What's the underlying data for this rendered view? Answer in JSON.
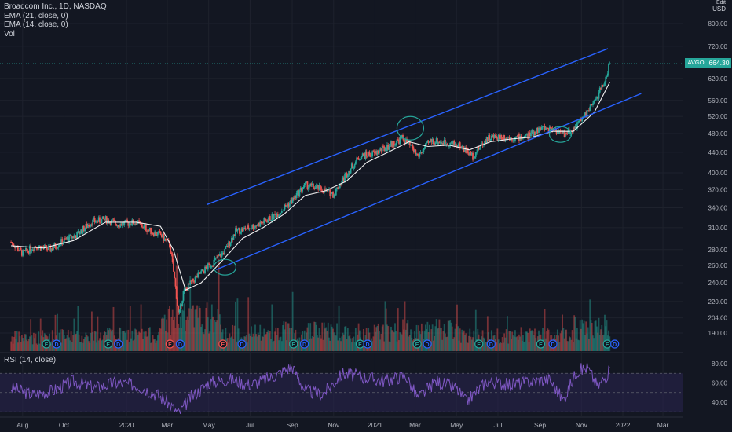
{
  "header": {
    "symbol_line": "Broadcom Inc., 1D, NASDAQ",
    "ema1": "EMA (21, close, 0)",
    "ema2": "EMA (14, close, 0)",
    "vol": "Vol"
  },
  "rsi_pane": {
    "title": "RSI (14, close)"
  },
  "price_axis": {
    "unit_top": "Edit",
    "unit": "USD"
  },
  "last_price": {
    "ticker": "AVGO",
    "value": "664.30"
  },
  "colors": {
    "background": "#131722",
    "up": "#26a69a",
    "down": "#ef5350",
    "ema_line": "#f0f0f0",
    "channel": "#2962ff",
    "circle": "#26a69a",
    "rsi_line": "#7e57c2",
    "rsi_band": "#2a2450",
    "earnings_up": "#26a69a",
    "earnings_down": "#ef5350"
  },
  "chart_data": [
    {
      "type": "candlestick",
      "title": "Broadcom Inc., 1D, NASDAQ",
      "y_scale": "log",
      "y_ticks": [
        190,
        204,
        220,
        240,
        260,
        280,
        310,
        340,
        370,
        400,
        440,
        480,
        520,
        560,
        620,
        720,
        800
      ],
      "y_tick_labels": [
        "190.00",
        "204.00",
        "220.00",
        "240.00",
        "260.00",
        "280.00",
        "310.00",
        "340.00",
        "370.00",
        "400.00",
        "440.00",
        "480.00",
        "520.00",
        "560.00",
        "620.00",
        "720.00",
        "800.00"
      ],
      "x_tick_labels": [
        "Aug",
        "Oct",
        "2020",
        "Mar",
        "May",
        "Jul",
        "Sep",
        "Nov",
        "2021",
        "Mar",
        "May",
        "Jul",
        "Sep",
        "Nov",
        "2022",
        "Mar"
      ],
      "x_ticks": [
        "2019-08",
        "2019-10",
        "2020-01",
        "2020-03",
        "2020-05",
        "2020-07",
        "2020-09",
        "2020-11",
        "2021-01",
        "2021-03",
        "2021-05",
        "2021-07",
        "2021-09",
        "2021-11",
        "2022-01",
        "2022-03"
      ],
      "series": [
        {
          "name": "Close",
          "x": [
            "2019-07-15",
            "2019-08-01",
            "2019-08-20",
            "2019-09-10",
            "2019-10-01",
            "2019-10-20",
            "2019-11-10",
            "2019-12-01",
            "2019-12-20",
            "2020-01-15",
            "2020-02-05",
            "2020-02-20",
            "2020-03-05",
            "2020-03-18",
            "2020-03-25",
            "2020-04-15",
            "2020-05-05",
            "2020-05-25",
            "2020-06-10",
            "2020-07-01",
            "2020-07-20",
            "2020-08-10",
            "2020-09-01",
            "2020-09-20",
            "2020-10-10",
            "2020-11-01",
            "2020-11-20",
            "2020-12-10",
            "2021-01-01",
            "2021-01-20",
            "2021-02-10",
            "2021-02-25",
            "2021-03-05",
            "2021-03-25",
            "2021-04-15",
            "2021-05-05",
            "2021-05-25",
            "2021-06-15",
            "2021-07-05",
            "2021-07-25",
            "2021-08-15",
            "2021-09-01",
            "2021-09-20",
            "2021-10-05",
            "2021-10-20",
            "2021-11-05",
            "2021-11-20",
            "2021-12-05",
            "2021-12-13"
          ],
          "values": [
            290,
            275,
            285,
            280,
            292,
            300,
            318,
            322,
            315,
            318,
            305,
            300,
            285,
            205,
            230,
            248,
            262,
            278,
            305,
            310,
            318,
            330,
            352,
            378,
            372,
            362,
            398,
            432,
            438,
            452,
            470,
            448,
            432,
            465,
            460,
            455,
            432,
            470,
            474,
            470,
            475,
            492,
            492,
            478,
            490,
            520,
            555,
            610,
            664
          ]
        },
        {
          "name": "EMA (21, close, 0)",
          "x": [
            "2019-07-15",
            "2019-09-01",
            "2019-10-15",
            "2019-12-01",
            "2020-01-15",
            "2020-02-20",
            "2020-03-10",
            "2020-03-28",
            "2020-04-20",
            "2020-05-20",
            "2020-06-20",
            "2020-07-20",
            "2020-08-20",
            "2020-09-20",
            "2020-10-20",
            "2020-11-20",
            "2020-12-20",
            "2021-01-20",
            "2021-02-20",
            "2021-03-20",
            "2021-04-20",
            "2021-05-20",
            "2021-06-20",
            "2021-07-20",
            "2021-08-20",
            "2021-09-20",
            "2021-10-20",
            "2021-11-20",
            "2021-12-13"
          ],
          "values": [
            285,
            282,
            292,
            318,
            318,
            312,
            280,
            232,
            240,
            265,
            295,
            310,
            330,
            360,
            368,
            385,
            420,
            440,
            462,
            452,
            455,
            445,
            462,
            468,
            472,
            485,
            485,
            530,
            610
          ]
        },
        {
          "name": "Vol",
          "x": [
            "2019-07",
            "2019-10",
            "2020-01",
            "2020-03",
            "2020-06",
            "2020-09",
            "2020-12",
            "2021-03",
            "2021-06",
            "2021-09",
            "2021-12"
          ],
          "values": [
            1.0,
            1.1,
            1.2,
            2.4,
            1.3,
            1.5,
            1.4,
            1.6,
            1.1,
            1.2,
            1.8
          ]
        }
      ],
      "channel_lines": [
        {
          "name": "upper",
          "x": [
            "2020-04-28",
            "2021-12-10"
          ],
          "values": [
            345,
            712
          ]
        },
        {
          "name": "lower",
          "x": [
            "2020-05-12",
            "2022-01-28"
          ],
          "values": [
            255,
            578
          ]
        }
      ],
      "circled": [
        {
          "x": "2020-05-25",
          "value": 258
        },
        {
          "x": "2021-02-22",
          "value": 492
        },
        {
          "x": "2021-10-01",
          "value": 478
        }
      ]
    },
    {
      "type": "line",
      "title": "RSI (14, close)",
      "y_ticks": [
        40,
        60,
        80
      ],
      "y_tick_labels": [
        "40.00",
        "60.00",
        "80.00"
      ],
      "band": [
        30,
        70
      ],
      "series": [
        {
          "name": "RSI (14, close)",
          "x": [
            "2019-07-15",
            "2019-08-15",
            "2019-09-15",
            "2019-10-15",
            "2019-11-15",
            "2019-12-15",
            "2020-01-15",
            "2020-02-15",
            "2020-03-01",
            "2020-03-18",
            "2020-04-05",
            "2020-05-01",
            "2020-06-01",
            "2020-07-01",
            "2020-08-01",
            "2020-09-01",
            "2020-09-20",
            "2020-10-15",
            "2020-11-15",
            "2020-12-15",
            "2021-01-15",
            "2021-02-15",
            "2021-03-05",
            "2021-04-01",
            "2021-05-01",
            "2021-05-15",
            "2021-06-15",
            "2021-07-15",
            "2021-08-15",
            "2021-09-15",
            "2021-10-05",
            "2021-10-25",
            "2021-11-10",
            "2021-11-25",
            "2021-12-13"
          ],
          "values": [
            55,
            48,
            52,
            62,
            55,
            60,
            58,
            48,
            40,
            28,
            45,
            60,
            64,
            58,
            66,
            77,
            52,
            48,
            70,
            66,
            62,
            68,
            44,
            62,
            54,
            40,
            62,
            58,
            61,
            64,
            42,
            72,
            76,
            56,
            72
          ]
        }
      ]
    }
  ]
}
